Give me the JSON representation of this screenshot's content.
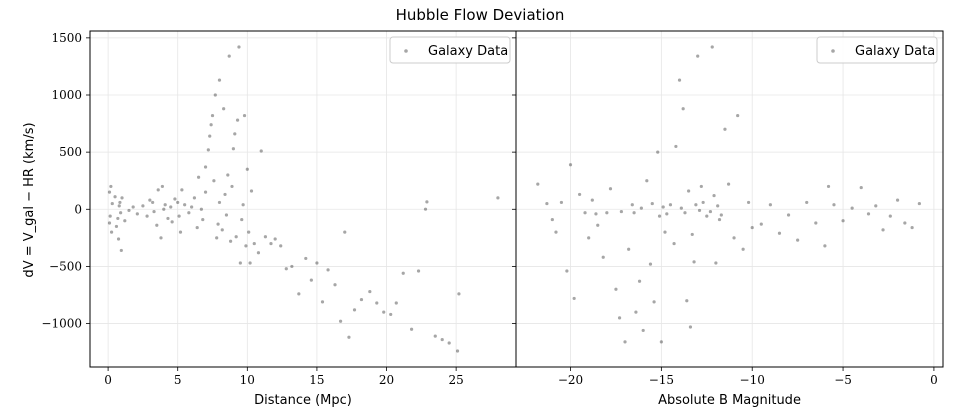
{
  "chart_data": {
    "title": "Hubble Flow Deviation",
    "ylabel": "dV = V_gal − HR (km/s)",
    "ylim": [
      -1380,
      1560
    ],
    "yticks": [
      1500,
      1000,
      500,
      0,
      -500,
      -1000
    ],
    "ytick_labels": [
      "1500",
      "1000",
      "500",
      "0",
      "−500",
      "−1000"
    ],
    "panels": [
      {
        "type": "scatter",
        "xlabel": "Distance (Mpc)",
        "xlim": [
          -1.3,
          29.3
        ],
        "xticks": [
          0,
          5,
          10,
          15,
          20,
          25
        ],
        "xtick_labels": [
          "0",
          "5",
          "10",
          "15",
          "20",
          "25"
        ],
        "grid": true,
        "legend": {
          "label": "Galaxy Data",
          "placement": "top-right"
        },
        "marker_color": "#000000",
        "marker_alpha": 0.35,
        "points": [
          [
            0.1,
            150
          ],
          [
            0.15,
            -60
          ],
          [
            0.2,
            200
          ],
          [
            0.1,
            -120
          ],
          [
            0.3,
            50
          ],
          [
            0.25,
            -200
          ],
          [
            0.5,
            110
          ],
          [
            0.6,
            -150
          ],
          [
            0.7,
            -80
          ],
          [
            0.8,
            30
          ],
          [
            0.9,
            -30
          ],
          [
            0.75,
            -260
          ],
          [
            0.85,
            60
          ],
          [
            0.95,
            -360
          ],
          [
            1.0,
            100
          ],
          [
            1.2,
            -100
          ],
          [
            1.5,
            -10
          ],
          [
            1.8,
            20
          ],
          [
            2.1,
            -40
          ],
          [
            2.5,
            30
          ],
          [
            2.8,
            -60
          ],
          [
            3.0,
            80
          ],
          [
            3.2,
            60
          ],
          [
            3.3,
            -20
          ],
          [
            3.5,
            -140
          ],
          [
            3.6,
            170
          ],
          [
            3.8,
            -250
          ],
          [
            3.9,
            200
          ],
          [
            4.0,
            0
          ],
          [
            4.1,
            40
          ],
          [
            4.3,
            -80
          ],
          [
            4.5,
            20
          ],
          [
            4.6,
            -110
          ],
          [
            4.8,
            90
          ],
          [
            5.0,
            60
          ],
          [
            5.1,
            -60
          ],
          [
            5.2,
            -200
          ],
          [
            5.3,
            170
          ],
          [
            5.5,
            40
          ],
          [
            5.8,
            -30
          ],
          [
            6.0,
            20
          ],
          [
            6.2,
            100
          ],
          [
            6.4,
            -160
          ],
          [
            6.5,
            280
          ],
          [
            6.7,
            0
          ],
          [
            6.8,
            -90
          ],
          [
            7.0,
            150
          ],
          [
            7.0,
            370
          ],
          [
            7.2,
            520
          ],
          [
            7.3,
            640
          ],
          [
            7.4,
            740
          ],
          [
            7.5,
            820
          ],
          [
            7.6,
            250
          ],
          [
            7.7,
            1000
          ],
          [
            7.8,
            -250
          ],
          [
            7.9,
            -130
          ],
          [
            8.0,
            60
          ],
          [
            8.0,
            1130
          ],
          [
            8.2,
            -180
          ],
          [
            8.3,
            880
          ],
          [
            8.4,
            130
          ],
          [
            8.5,
            -50
          ],
          [
            8.6,
            300
          ],
          [
            8.7,
            1340
          ],
          [
            8.8,
            -280
          ],
          [
            8.9,
            200
          ],
          [
            9.0,
            530
          ],
          [
            9.1,
            660
          ],
          [
            9.2,
            -240
          ],
          [
            9.3,
            780
          ],
          [
            9.4,
            1420
          ],
          [
            9.5,
            -470
          ],
          [
            9.6,
            -90
          ],
          [
            9.7,
            40
          ],
          [
            9.8,
            820
          ],
          [
            9.9,
            -320
          ],
          [
            10.0,
            350
          ],
          [
            10.1,
            -200
          ],
          [
            10.2,
            -470
          ],
          [
            10.3,
            160
          ],
          [
            10.5,
            -300
          ],
          [
            10.8,
            -380
          ],
          [
            11.0,
            510
          ],
          [
            11.3,
            -240
          ],
          [
            11.7,
            -300
          ],
          [
            12.0,
            -260
          ],
          [
            12.4,
            -320
          ],
          [
            12.8,
            -520
          ],
          [
            13.2,
            -500
          ],
          [
            13.7,
            -740
          ],
          [
            14.2,
            -430
          ],
          [
            14.6,
            -620
          ],
          [
            15.0,
            -470
          ],
          [
            15.4,
            -810
          ],
          [
            15.8,
            -530
          ],
          [
            16.3,
            -660
          ],
          [
            16.7,
            -980
          ],
          [
            17.0,
            -200
          ],
          [
            17.3,
            -1120
          ],
          [
            17.7,
            -880
          ],
          [
            18.2,
            -790
          ],
          [
            18.8,
            -720
          ],
          [
            19.3,
            -820
          ],
          [
            19.8,
            -900
          ],
          [
            20.3,
            -920
          ],
          [
            20.7,
            -820
          ],
          [
            21.2,
            -560
          ],
          [
            21.8,
            -1050
          ],
          [
            22.3,
            -540
          ],
          [
            22.8,
            1
          ],
          [
            22.9,
            65
          ],
          [
            23.5,
            -1110
          ],
          [
            24.0,
            -1140
          ],
          [
            24.5,
            -1170
          ],
          [
            25.1,
            -1240
          ],
          [
            25.2,
            -740
          ],
          [
            28.0,
            100
          ]
        ]
      },
      {
        "type": "scatter",
        "xlabel": "Absolute B Magnitude",
        "xlim": [
          -23.0,
          0.5
        ],
        "xticks": [
          -20,
          -15,
          -10,
          -5,
          0
        ],
        "xtick_labels": [
          "−20",
          "−15",
          "−10",
          "−5",
          "0"
        ],
        "grid": true,
        "legend": {
          "label": "Galaxy Data",
          "placement": "top-right"
        },
        "marker_color": "#000000",
        "marker_alpha": 0.35,
        "points": [
          [
            -21.8,
            220
          ],
          [
            -21.3,
            50
          ],
          [
            -21.0,
            -90
          ],
          [
            -20.8,
            -200
          ],
          [
            -20.5,
            60
          ],
          [
            -20.2,
            -540
          ],
          [
            -20.0,
            390
          ],
          [
            -19.8,
            -780
          ],
          [
            -19.5,
            130
          ],
          [
            -19.2,
            -30
          ],
          [
            -19.0,
            -250
          ],
          [
            -18.8,
            80
          ],
          [
            -18.5,
            -140
          ],
          [
            -18.2,
            -420
          ],
          [
            -18.0,
            -30
          ],
          [
            -17.8,
            180
          ],
          [
            -17.5,
            -700
          ],
          [
            -17.3,
            -950
          ],
          [
            -17.0,
            -1160
          ],
          [
            -16.8,
            -350
          ],
          [
            -16.6,
            40
          ],
          [
            -16.4,
            -900
          ],
          [
            -16.2,
            -630
          ],
          [
            -16.0,
            -1060
          ],
          [
            -15.8,
            250
          ],
          [
            -15.6,
            -480
          ],
          [
            -15.4,
            -810
          ],
          [
            -15.2,
            500
          ],
          [
            -15.0,
            -1160
          ],
          [
            -14.8,
            -200
          ],
          [
            -14.5,
            40
          ],
          [
            -14.2,
            550
          ],
          [
            -14.0,
            1130
          ],
          [
            -13.8,
            880
          ],
          [
            -13.6,
            -800
          ],
          [
            -13.4,
            -1030
          ],
          [
            -13.2,
            -460
          ],
          [
            -13.0,
            1340
          ],
          [
            -12.8,
            200
          ],
          [
            -12.5,
            -60
          ],
          [
            -12.2,
            1420
          ],
          [
            -12.0,
            -470
          ],
          [
            -11.8,
            -90
          ],
          [
            -11.5,
            700
          ],
          [
            -11.3,
            220
          ],
          [
            -11.0,
            -250
          ],
          [
            -10.8,
            820
          ],
          [
            -10.5,
            -350
          ],
          [
            -10.2,
            60
          ],
          [
            -10.0,
            -160
          ],
          [
            -9.5,
            -130
          ],
          [
            -9.0,
            40
          ],
          [
            -8.5,
            -210
          ],
          [
            -8.0,
            -50
          ],
          [
            -7.5,
            -270
          ],
          [
            -7.0,
            60
          ],
          [
            -6.5,
            -120
          ],
          [
            -6.0,
            -320
          ],
          [
            -5.8,
            200
          ],
          [
            -5.5,
            40
          ],
          [
            -5.0,
            -100
          ],
          [
            -4.5,
            10
          ],
          [
            -4.0,
            190
          ],
          [
            -3.6,
            -40
          ],
          [
            -3.2,
            30
          ],
          [
            -2.8,
            -180
          ],
          [
            -2.4,
            -60
          ],
          [
            -2.0,
            80
          ],
          [
            -1.6,
            -120
          ],
          [
            -1.2,
            -160
          ],
          [
            -0.8,
            50
          ],
          [
            -15.1,
            -60
          ],
          [
            -14.9,
            20
          ],
          [
            -14.7,
            -40
          ],
          [
            -13.9,
            10
          ],
          [
            -13.7,
            -30
          ],
          [
            -13.1,
            40
          ],
          [
            -12.9,
            -10
          ],
          [
            -12.7,
            60
          ],
          [
            -12.3,
            -20
          ],
          [
            -11.9,
            30
          ],
          [
            -11.7,
            -50
          ],
          [
            -16.1,
            10
          ],
          [
            -16.5,
            -30
          ],
          [
            -15.5,
            50
          ],
          [
            -17.2,
            -20
          ],
          [
            -18.6,
            -40
          ],
          [
            -14.3,
            -300
          ],
          [
            -13.3,
            -220
          ],
          [
            -13.5,
            160
          ],
          [
            -12.1,
            120
          ]
        ]
      }
    ]
  }
}
